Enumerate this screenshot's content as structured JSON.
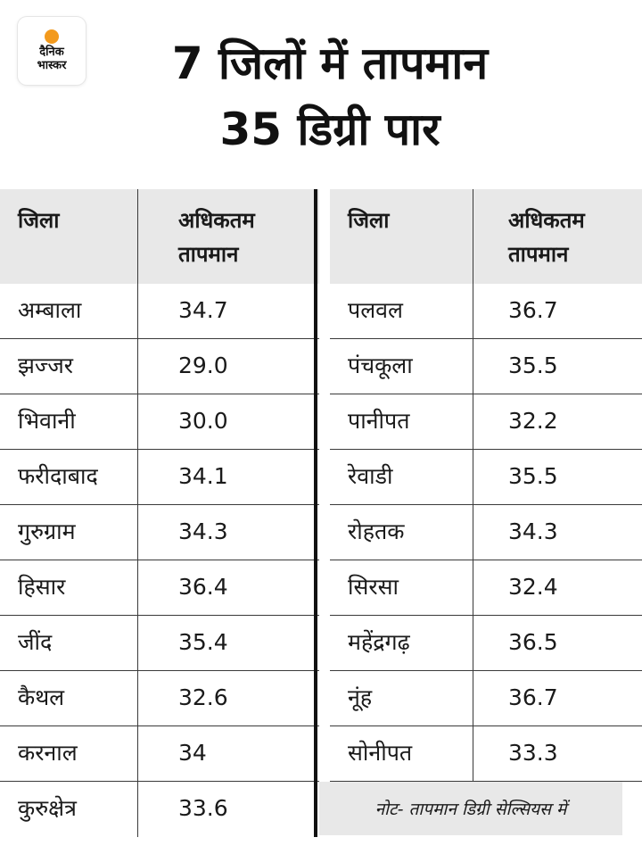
{
  "logo": {
    "line1": "दैनिक",
    "line2": "भास्कर"
  },
  "title": {
    "line1": "7 जिलों में तापमान",
    "line2": "35 डिग्री पार"
  },
  "table": {
    "left": {
      "headers": [
        "जिला",
        "अधिकतम",
        "तापमान"
      ],
      "rows": [
        [
          "अम्बाला",
          "34.7"
        ],
        [
          "झज्जर",
          "29.0"
        ],
        [
          "भिवानी",
          "30.0"
        ],
        [
          "फरीदाबाद",
          "34.1"
        ],
        [
          "गुरुग्राम",
          "34.3"
        ],
        [
          "हिसार",
          "36.4"
        ],
        [
          "जींद",
          "35.4"
        ],
        [
          "कैथल",
          "32.6"
        ],
        [
          "करनाल",
          "34"
        ],
        [
          "कुरुक्षेत्र",
          "33.6"
        ]
      ]
    },
    "right": {
      "headers": [
        "जिला",
        "अधिकतम",
        "तापमान"
      ],
      "rows": [
        [
          "पलवल",
          "36.7"
        ],
        [
          "पंचकूला",
          "35.5"
        ],
        [
          "पानीपत",
          "32.2"
        ],
        [
          "रेवाडी",
          "35.5"
        ],
        [
          "रोहतक",
          "34.3"
        ],
        [
          "सिरसा",
          "32.4"
        ],
        [
          "महेंद्रगढ़",
          "36.5"
        ],
        [
          "नूंह",
          "36.7"
        ],
        [
          "सोनीपत",
          "33.3"
        ]
      ]
    }
  },
  "note": "नोट- तापमान डिग्री सेल्सियस में",
  "colors": {
    "header_bg": "#e8e8e8",
    "logo_sun": "#f39a1d",
    "text": "#1a1a1a"
  }
}
